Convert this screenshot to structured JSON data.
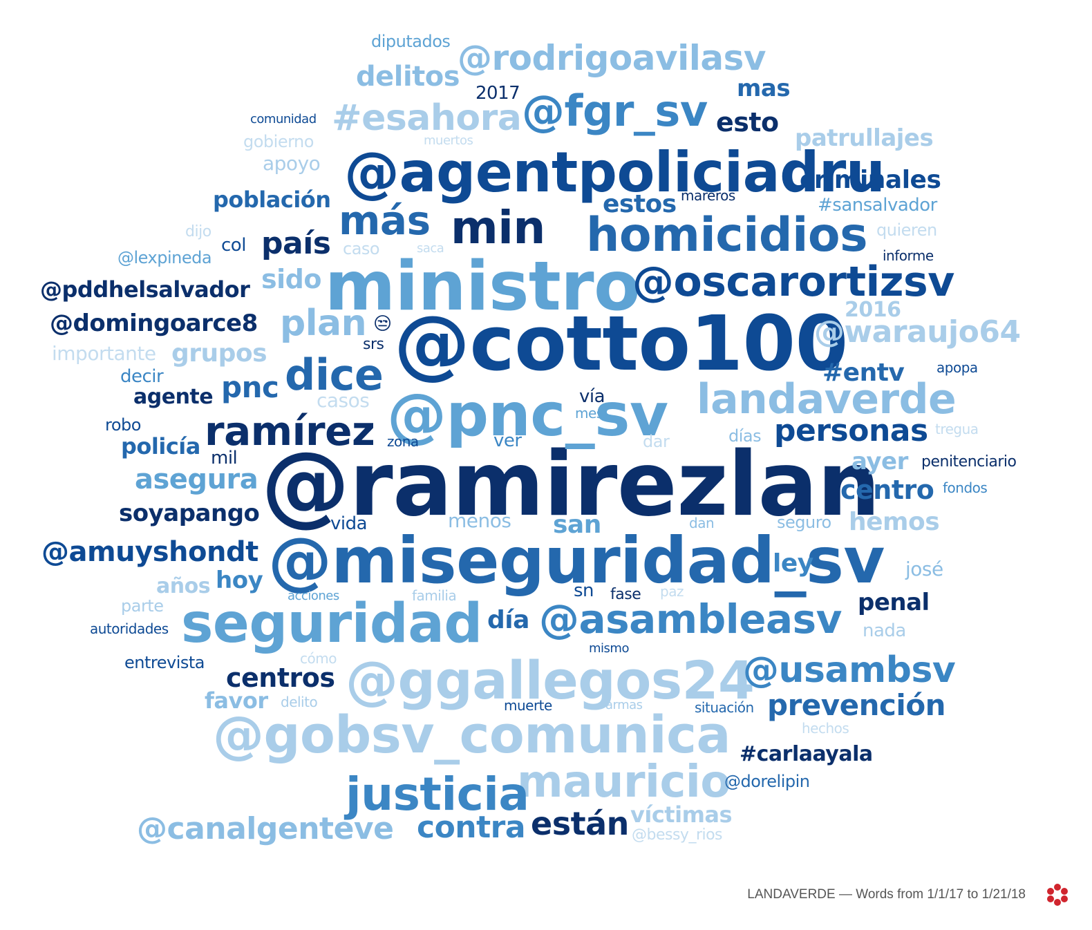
{
  "colors": {
    "c1": "#0b2f6b",
    "c2": "#0e4a94",
    "c3": "#2468ad",
    "c4": "#3b86c4",
    "c5": "#5ea3d4",
    "c6": "#8bbde3",
    "c7": "#a9cde9",
    "c8": "#c3dcef"
  },
  "footer": {
    "caption": "LANDAVERDE — Words from 1/1/17 to 1/21/18",
    "logo_icon": "red-flower-logo-icon"
  },
  "words": [
    {
      "text": "@ramirezlan",
      "color": "c1"
    },
    {
      "text": "@cotto100",
      "color": "c2"
    },
    {
      "text": "ministro",
      "color": "c5"
    },
    {
      "text": "@miseguridad_sv",
      "color": "c3"
    },
    {
      "text": "@agentpoliciadru",
      "color": "c2"
    },
    {
      "text": "@pnc_sv",
      "color": "c5"
    },
    {
      "text": "seguridad",
      "color": "c5"
    },
    {
      "text": "@ggallegos24",
      "color": "c7"
    },
    {
      "text": "@gobsv_comunica",
      "color": "c7"
    },
    {
      "text": "homicidios",
      "color": "c3"
    },
    {
      "text": "landaverde",
      "color": "c6"
    },
    {
      "text": "@oscarortizsv",
      "color": "c2"
    },
    {
      "text": "@asambleasv",
      "color": "c4"
    },
    {
      "text": "mauricio",
      "color": "c7"
    },
    {
      "text": "justicia",
      "color": "c4"
    },
    {
      "text": "@fgr_sv",
      "color": "c4"
    },
    {
      "text": "@rodrigoavilasv",
      "color": "c6"
    },
    {
      "text": "#esahora",
      "color": "c7"
    },
    {
      "text": "min",
      "color": "c1"
    },
    {
      "text": "más",
      "color": "c3"
    },
    {
      "text": "dice",
      "color": "c3"
    },
    {
      "text": "ramírez",
      "color": "c1"
    },
    {
      "text": "@usambsv",
      "color": "c4"
    },
    {
      "text": "@canalgenteve",
      "color": "c6"
    },
    {
      "text": "plan",
      "color": "c6"
    },
    {
      "text": "país",
      "color": "c1"
    },
    {
      "text": "@waraujo64",
      "color": "c7"
    },
    {
      "text": "prevención",
      "color": "c3"
    },
    {
      "text": "personas",
      "color": "c2"
    },
    {
      "text": "contra",
      "color": "c4"
    },
    {
      "text": "están",
      "color": "c1"
    },
    {
      "text": "centros",
      "color": "c1"
    },
    {
      "text": "delitos",
      "color": "c6"
    },
    {
      "text": "criminales",
      "color": "c2"
    },
    {
      "text": "asegura",
      "color": "c5"
    },
    {
      "text": "patrullajes",
      "color": "c7"
    },
    {
      "text": "@amuyshondt",
      "color": "c2"
    },
    {
      "text": "@pddhelsalvador",
      "color": "c1"
    },
    {
      "text": "@domingoarce8",
      "color": "c1"
    },
    {
      "text": "esto",
      "color": "c1"
    },
    {
      "text": "mas",
      "color": "c3"
    },
    {
      "text": "centro",
      "color": "c3"
    },
    {
      "text": "hemos",
      "color": "c7"
    },
    {
      "text": "población",
      "color": "c3"
    },
    {
      "text": "grupos",
      "color": "c7"
    },
    {
      "text": "pnc",
      "color": "c3"
    },
    {
      "text": "sido",
      "color": "c6"
    },
    {
      "text": "estos",
      "color": "c3"
    },
    {
      "text": "soyapango",
      "color": "c1"
    },
    {
      "text": "#entv",
      "color": "c3"
    },
    {
      "text": "ayer",
      "color": "c6"
    },
    {
      "text": "san",
      "color": "c5"
    },
    {
      "text": "ley",
      "color": "c4"
    },
    {
      "text": "día",
      "color": "c3"
    },
    {
      "text": "penal",
      "color": "c1"
    },
    {
      "text": "#carlaayala",
      "color": "c1"
    },
    {
      "text": "víctimas",
      "color": "c7"
    },
    {
      "text": "policía",
      "color": "c3"
    },
    {
      "text": "agente",
      "color": "c1"
    },
    {
      "text": "hoy",
      "color": "c4"
    },
    {
      "text": "años",
      "color": "c7"
    },
    {
      "text": "favor",
      "color": "c6"
    },
    {
      "text": "2016",
      "color": "c7"
    },
    {
      "text": "#sansalvador",
      "color": "c5"
    },
    {
      "text": "apoyo",
      "color": "c7"
    },
    {
      "text": "2017",
      "color": "c1"
    },
    {
      "text": "importante",
      "color": "c8"
    },
    {
      "text": "menos",
      "color": "c6"
    },
    {
      "text": "nada",
      "color": "c7"
    },
    {
      "text": "josé",
      "color": "c6"
    },
    {
      "text": "entrevista",
      "color": "c2"
    },
    {
      "text": "@dorelipin",
      "color": "c3"
    },
    {
      "text": "quieren",
      "color": "c8"
    },
    {
      "text": "col",
      "color": "c2"
    },
    {
      "text": "casos",
      "color": "c8"
    },
    {
      "text": "vía",
      "color": "c1"
    },
    {
      "text": "mes",
      "color": "c5"
    },
    {
      "text": "vida",
      "color": "c2"
    },
    {
      "text": "decir",
      "color": "c4"
    },
    {
      "text": "mil",
      "color": "c1"
    },
    {
      "text": "ver",
      "color": "c4"
    },
    {
      "text": "días",
      "color": "c6"
    },
    {
      "text": "gobierno",
      "color": "c8"
    },
    {
      "text": "parte",
      "color": "c7"
    },
    {
      "text": "robo",
      "color": "c2"
    },
    {
      "text": "@lexpineda",
      "color": "c5"
    },
    {
      "text": "diputados",
      "color": "c5"
    },
    {
      "text": "seguro",
      "color": "c6"
    },
    {
      "text": "penitenciario",
      "color": "c1"
    },
    {
      "text": "dar",
      "color": "c8"
    },
    {
      "text": "@bessy_rios",
      "color": "c8"
    },
    {
      "text": "comunidad",
      "color": "c2"
    },
    {
      "text": "srs",
      "color": "c1"
    },
    {
      "text": "apopa",
      "color": "c2"
    },
    {
      "text": "informe",
      "color": "c1"
    },
    {
      "text": "situación",
      "color": "c3"
    },
    {
      "text": "autoridades",
      "color": "c2"
    },
    {
      "text": "sn",
      "color": "c2"
    },
    {
      "text": "fase",
      "color": "c1"
    },
    {
      "text": "caso",
      "color": "c8"
    },
    {
      "text": "dan",
      "color": "c6"
    },
    {
      "text": "paz",
      "color": "c8"
    },
    {
      "text": "familia",
      "color": "c7"
    },
    {
      "text": "acciones",
      "color": "c5"
    },
    {
      "text": "mareros",
      "color": "c1"
    },
    {
      "text": "muertos",
      "color": "c8"
    },
    {
      "text": "zona",
      "color": "c2"
    },
    {
      "text": "saca",
      "color": "c8"
    },
    {
      "text": "tregua",
      "color": "c8"
    },
    {
      "text": "fondos",
      "color": "c4"
    },
    {
      "text": "hechos",
      "color": "c8"
    },
    {
      "text": "mismo",
      "color": "c2"
    },
    {
      "text": "muerte",
      "color": "c2"
    },
    {
      "text": "armas",
      "color": "c7"
    },
    {
      "text": "delito",
      "color": "c7"
    },
    {
      "text": "cómo",
      "color": "c8"
    },
    {
      "text": "dijo",
      "color": "c8"
    },
    {
      "text": "😒",
      "color": "c1"
    }
  ]
}
